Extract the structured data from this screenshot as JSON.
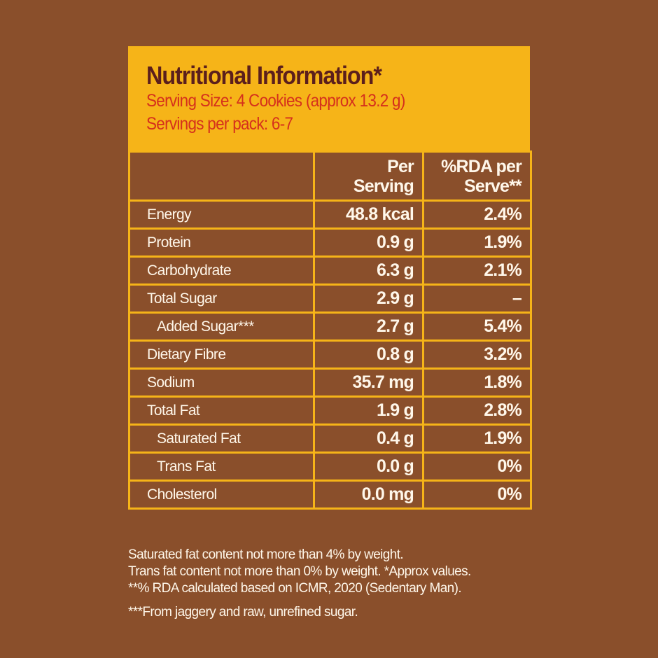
{
  "title": "Nutritional Information*",
  "serving_size": "Serving Size: 4 Cookies (approx 13.2 g)",
  "servings_per_pack": "Servings per pack: 6-7",
  "columns": {
    "per_serving_1": "Per",
    "per_serving_2": "Serving",
    "rda_1": "%RDA per",
    "rda_2": "Serve**"
  },
  "rows": [
    {
      "name": "Energy",
      "value": "48.8 kcal",
      "rda": "2.4%"
    },
    {
      "name": "Protein",
      "value": "0.9 g",
      "rda": "1.9%"
    },
    {
      "name": "Carbohydrate",
      "value": "6.3 g",
      "rda": "2.1%"
    },
    {
      "name": "Total Sugar",
      "value": "2.9 g",
      "rda": "–"
    },
    {
      "name": "Added Sugar***",
      "value": "2.7 g",
      "rda": "5.4%"
    },
    {
      "name": "Dietary Fibre",
      "value": "0.8 g",
      "rda": "3.2%"
    },
    {
      "name": "Sodium",
      "value": "35.7 mg",
      "rda": "1.8%"
    },
    {
      "name": "Total Fat",
      "value": "1.9 g",
      "rda": "2.8%"
    },
    {
      "name": "Saturated Fat",
      "value": "0.4 g",
      "rda": "1.9%"
    },
    {
      "name": "Trans Fat",
      "value": "0.0 g",
      "rda": "0%"
    },
    {
      "name": "Cholesterol",
      "value": "0.0 mg",
      "rda": "0%"
    }
  ],
  "notes": [
    "Saturated fat content not more than 4% by weight.",
    "Trans fat content not more than 0% by weight. *Approx values.",
    "**% RDA calculated based on ICMR, 2020 (Sedentary Man).",
    "***From jaggery and raw, unrefined sugar."
  ],
  "colors": {
    "background": "#8a4f2b",
    "accent": "#f6b418",
    "title": "#5b1f1c",
    "subtitle": "#d5301c"
  }
}
